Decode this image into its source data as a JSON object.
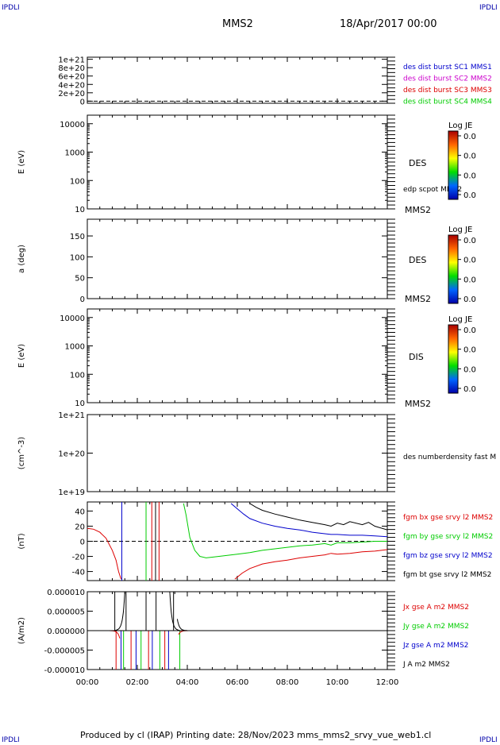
{
  "header": {
    "corner_label": "IPDLI",
    "spacecraft": "MMS2",
    "date": "18/Apr/2017 00:00"
  },
  "footer": {
    "text": "Produced by cl (IRAP)   Printing date: 28/Nov/2023   mms_mms2_srvy_vue_web1.cl"
  },
  "colors": {
    "mms1": "#0000cc",
    "mms2": "#cc00cc",
    "mms3": "#dd0000",
    "mms4": "#00cc00",
    "bx": "#dd0000",
    "by": "#00cc00",
    "bz": "#0000cc",
    "bt": "#000000"
  },
  "chart_data": [
    {
      "type": "line",
      "panel": "des_dist_burst",
      "yticks": [
        "1e+21",
        "8e+20",
        "6e+20",
        "4e+20",
        "2e+20",
        "0"
      ],
      "ylim": [
        0,
        1e+21
      ],
      "legend": [
        {
          "label": "des dist burst SC1 MMS1",
          "color": "#0000cc"
        },
        {
          "label": "des dist burst SC2 MMS2",
          "color": "#cc00cc"
        },
        {
          "label": "des dist burst SC3 MMS3",
          "color": "#dd0000"
        },
        {
          "label": "des dist burst SC4 MMS4",
          "color": "#00cc00"
        }
      ],
      "reference_line": 0
    },
    {
      "type": "heatmap",
      "panel": "des_energy",
      "ylabel": "E (eV)",
      "yticks": [
        "10000",
        "1000",
        "100",
        "10"
      ],
      "ylog": true,
      "ylim": [
        10,
        20000
      ],
      "label": "DES",
      "extra_label": "edp scpot MMS2",
      "sc_label": "MMS2",
      "colorbar": {
        "title": "Log JE",
        "ticks": [
          "0.0",
          "0.0",
          "0.0",
          "0.0"
        ]
      }
    },
    {
      "type": "heatmap",
      "panel": "des_pitch",
      "ylabel": "a (deg)",
      "yticks": [
        "150",
        "100",
        "50",
        "0"
      ],
      "ylim": [
        0,
        180
      ],
      "label": "DES",
      "sc_label": "MMS2",
      "colorbar": {
        "title": "Log JE",
        "ticks": [
          "0.0",
          "0.0",
          "0.0",
          "0.0"
        ]
      }
    },
    {
      "type": "heatmap",
      "panel": "dis_energy",
      "ylabel": "E (eV)",
      "yticks": [
        "10000",
        "1000",
        "100",
        "10"
      ],
      "ylog": true,
      "ylim": [
        10,
        20000
      ],
      "label": "DIS",
      "sc_label": "MMS2",
      "colorbar": {
        "title": "Log JE",
        "ticks": [
          "0.0",
          "0.0",
          "0.0",
          "0.0"
        ]
      }
    },
    {
      "type": "line",
      "panel": "des_density",
      "ylabel": "(cm^-3)",
      "yticks": [
        "1e+21",
        "1e+20",
        "1e+19"
      ],
      "ylog": true,
      "label": "des numberdensity fast M"
    },
    {
      "type": "line",
      "panel": "fgm",
      "ylabel": "(nT)",
      "yticks": [
        "40",
        "20",
        "0",
        "-20",
        "-40"
      ],
      "ylim": [
        -50,
        50
      ],
      "reference_line": 0,
      "series": [
        {
          "name": "fgm bx gse srvy l2 MMS2",
          "color": "#dd0000",
          "x": [
            0,
            0.25,
            0.5,
            0.75,
            1.0,
            1.15,
            1.25,
            1.35,
            null,
            5.9,
            6.2,
            6.5,
            7.0,
            7.5,
            8.0,
            8.5,
            9.0,
            9.5,
            9.75,
            10.0,
            10.5,
            11.0,
            11.5,
            12.0
          ],
          "y": [
            17,
            16,
            12,
            4,
            -12,
            -25,
            -40,
            -50,
            null,
            -50,
            -42,
            -36,
            -30,
            -27,
            -25,
            -22,
            -20,
            -18,
            -16,
            -17,
            -16,
            -14,
            -13,
            -11
          ]
        },
        {
          "name": "fgm by gse srvy l2 MMS2",
          "color": "#00cc00",
          "x": [
            3.85,
            3.95,
            4.1,
            4.3,
            4.5,
            4.75,
            5.0,
            5.5,
            6.0,
            6.5,
            7.0,
            7.5,
            8.0,
            8.5,
            9.0,
            9.5,
            9.75,
            10.0,
            10.5,
            11.0,
            11.5,
            12.0
          ],
          "y": [
            50,
            35,
            5,
            -12,
            -20,
            -22,
            -21,
            -19,
            -17,
            -15,
            -12,
            -10,
            -8,
            -6,
            -5,
            -3,
            -5,
            -2,
            -2,
            -1,
            0,
            0
          ]
        },
        {
          "name": "fgm bz gse srvy l2 MMS2",
          "color": "#0000cc",
          "x": [
            5.75,
            6.0,
            6.25,
            6.5,
            7.0,
            7.5,
            8.0,
            8.5,
            9.0,
            9.5,
            9.75,
            10.0,
            10.5,
            11.0,
            11.5,
            12.0
          ],
          "y": [
            50,
            43,
            36,
            30,
            24,
            20,
            17,
            15,
            12,
            10,
            9,
            9,
            8,
            8,
            7,
            6
          ]
        },
        {
          "name": "fgm bt gse srvy l2 MMS2",
          "color": "#000000",
          "x": [
            6.5,
            6.75,
            7.0,
            7.5,
            8.0,
            8.5,
            9.0,
            9.5,
            9.75,
            10.0,
            10.25,
            10.5,
            11.0,
            11.25,
            11.5,
            12.0
          ],
          "y": [
            50,
            45,
            41,
            36,
            32,
            28,
            25,
            22,
            20,
            24,
            22,
            26,
            22,
            25,
            20,
            15
          ]
        }
      ],
      "spikes": [
        {
          "x": 1.38,
          "color": "#0000cc"
        },
        {
          "x": 2.35,
          "color": "#00cc00"
        },
        {
          "x": 2.58,
          "color": "#dd0000"
        },
        {
          "x": 2.73,
          "color": "#000000"
        },
        {
          "x": 2.87,
          "color": "#dd0000"
        }
      ]
    },
    {
      "type": "line",
      "panel": "current",
      "ylabel": "(A/m2)",
      "yticks": [
        "0.000010",
        "0.000005",
        "0.000000",
        "-0.000005",
        "-0.000010"
      ],
      "ylim": [
        -1e-05,
        1e-05
      ],
      "reference_line": 0,
      "series": [
        {
          "name": "Jx gse A m2 MMS2",
          "color": "#dd0000"
        },
        {
          "name": "Jy gse A m2 MMS2",
          "color": "#00cc00"
        },
        {
          "name": "Jz gse A m2 MMS2",
          "color": "#0000cc"
        },
        {
          "name": "J A m2 MMS2",
          "color": "#000000"
        }
      ],
      "xticks": [
        "00:00",
        "02:00",
        "04:00",
        "06:00",
        "08:00",
        "10:00",
        "12:00"
      ],
      "xlim": [
        0,
        12
      ]
    }
  ]
}
